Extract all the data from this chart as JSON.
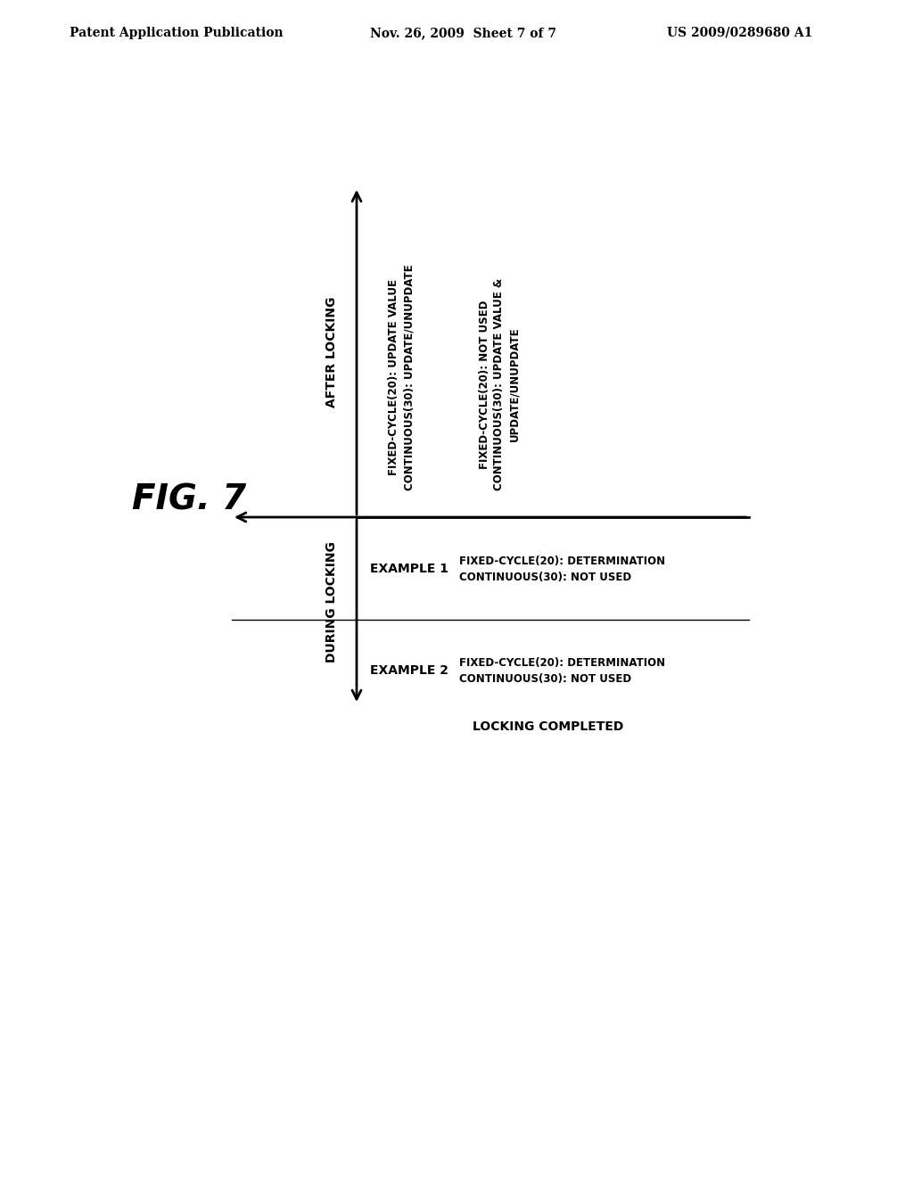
{
  "background_color": "#ffffff",
  "header_left": "Patent Application Publication",
  "header_center": "Nov. 26, 2009  Sheet 7 of 7",
  "header_right": "US 2009/0289680 A1",
  "fig_label": "FIG. 7",
  "during_locking_label": "DURING LOCKING",
  "after_locking_label": "AFTER LOCKING",
  "locking_completed_label": "LOCKING COMPLETED",
  "example1_label": "EXAMPLE 1",
  "example2_label": "EXAMPLE 2",
  "example1_during": "FIXED-CYCLE(20): DETERMINATION\nCONTINUOUS(30): NOT USED",
  "example2_during": "FIXED-CYCLE(20): DETERMINATION\nCONTINUOUS(30): NOT USED",
  "example1_after": "FIXED-CYCLE(20): UPDATE VALUE\nCONTINUOUS(30): UPDATE/UNUPDATE",
  "example2_after": "FIXED-CYCLE(20): NOT USED\nCONTINUOUS(30): UPDATE VALUE &\nUPDATE/UNUPDATE",
  "font_color": "#000000",
  "line_color": "#000000",
  "header_fontsize": 10,
  "fig_label_fontsize": 28,
  "axis_label_fontsize": 10,
  "example_label_fontsize": 10,
  "content_fontsize": 8.5,
  "locking_completed_fontsize": 10
}
